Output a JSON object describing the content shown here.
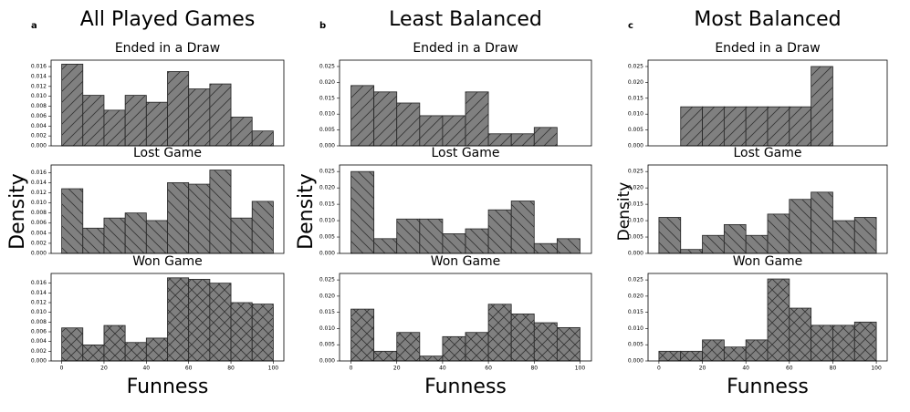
{
  "panels": [
    {
      "label": "a",
      "title": "All Played Games",
      "ylabel": "Density",
      "xlabel": "Funness"
    },
    {
      "label": "b",
      "title": "Least Balanced",
      "ylabel": "Density",
      "xlabel": "Funness"
    },
    {
      "label": "c",
      "title": "Most Balanced",
      "ylabel": "Density",
      "xlabel": "Funness"
    }
  ],
  "chart_data": [
    {
      "type": "histogram",
      "title": "Ended in a Draw",
      "bins": [
        0,
        10,
        20,
        30,
        40,
        50,
        60,
        70,
        80,
        90,
        100
      ],
      "values": [
        0.0165,
        0.0102,
        0.0072,
        0.0102,
        0.0088,
        0.015,
        0.0115,
        0.0125,
        0.0058,
        0.003
      ],
      "color": "#808080",
      "hatch": "/",
      "xlim": [
        -5,
        105
      ],
      "ylim": [
        0,
        0.0173
      ],
      "yticks": [
        {
          "value": 0,
          "label": "0.000"
        },
        0.002,
        0.004,
        0.006,
        0.008,
        {
          "value": 0.01,
          "label": "0.010"
        },
        0.012,
        0.014,
        0.016
      ]
    },
    {
      "type": "histogram",
      "title": "Lost Game",
      "bins": [
        0,
        10,
        20,
        30,
        40,
        50,
        60,
        70,
        80,
        90,
        100
      ],
      "values": [
        0.0128,
        0.005,
        0.007,
        0.008,
        0.0065,
        0.014,
        0.0137,
        0.0165,
        0.007,
        0.0103
      ],
      "color": "#808080",
      "hatch": "\\",
      "xlim": [
        -5,
        105
      ],
      "ylim": [
        0,
        0.0175
      ],
      "yticks": [
        {
          "value": 0,
          "label": "0.000"
        },
        0.002,
        0.004,
        0.006,
        0.008,
        {
          "value": 0.01,
          "label": "0.010"
        },
        0.012,
        0.014,
        0.016
      ]
    },
    {
      "type": "histogram",
      "title": "Won Game",
      "bins": [
        0,
        10,
        20,
        30,
        40,
        50,
        60,
        70,
        80,
        90,
        100
      ],
      "values": [
        0.0068,
        0.0033,
        0.0073,
        0.0038,
        0.0047,
        0.0171,
        0.0168,
        0.016,
        0.012,
        0.0117
      ],
      "color": "#808080",
      "hatch": "x",
      "xlim": [
        -5,
        105
      ],
      "ylim": [
        0,
        0.018
      ],
      "yticks": [
        {
          "value": 0,
          "label": "0.000"
        },
        0.002,
        0.004,
        0.006,
        0.008,
        {
          "value": 0.01,
          "label": "0.010"
        },
        0.012,
        0.014,
        0.016
      ],
      "xticks": [
        0,
        20,
        40,
        60,
        80,
        100
      ]
    },
    {
      "type": "histogram",
      "title": "Ended in a Draw",
      "bins": [
        0,
        10,
        20,
        30,
        40,
        50,
        60,
        70,
        80,
        90,
        100
      ],
      "values": [
        0.019,
        0.017,
        0.0135,
        0.0095,
        0.0095,
        0.017,
        0.0038,
        0.0038,
        0.0058,
        0
      ],
      "color": "#808080",
      "hatch": "/",
      "xlim": [
        -5,
        105
      ],
      "ylim": [
        0,
        0.027
      ],
      "yticks": [
        {
          "value": 0,
          "label": "0.000"
        },
        0.005,
        {
          "value": 0.01,
          "label": "0.010"
        },
        0.015,
        {
          "value": 0.02,
          "label": "0.020"
        },
        0.025
      ]
    },
    {
      "type": "histogram",
      "title": "Lost Game",
      "bins": [
        0,
        10,
        20,
        30,
        40,
        50,
        60,
        70,
        80,
        90,
        100
      ],
      "values": [
        0.025,
        0.0045,
        0.0105,
        0.0105,
        0.006,
        0.0075,
        0.0133,
        0.016,
        0.003,
        0.0045
      ],
      "color": "#808080",
      "hatch": "\\",
      "xlim": [
        -5,
        105
      ],
      "ylim": [
        0,
        0.027
      ],
      "yticks": [
        {
          "value": 0,
          "label": "0.000"
        },
        0.005,
        {
          "value": 0.01,
          "label": "0.010"
        },
        0.015,
        {
          "value": 0.02,
          "label": "0.020"
        },
        0.025
      ]
    },
    {
      "type": "histogram",
      "title": "Won Game",
      "bins": [
        0,
        10,
        20,
        30,
        40,
        50,
        60,
        70,
        80,
        90,
        100
      ],
      "values": [
        0.016,
        0.003,
        0.0088,
        0.0015,
        0.0075,
        0.0088,
        0.0175,
        0.0145,
        0.0118,
        0.0103
      ],
      "color": "#808080",
      "hatch": "x",
      "xlim": [
        -5,
        105
      ],
      "ylim": [
        0,
        0.027
      ],
      "yticks": [
        {
          "value": 0,
          "label": "0.000"
        },
        0.005,
        {
          "value": 0.01,
          "label": "0.010"
        },
        0.015,
        {
          "value": 0.02,
          "label": "0.020"
        },
        0.025
      ],
      "xticks": [
        0,
        20,
        40,
        60,
        80,
        100
      ]
    },
    {
      "type": "histogram",
      "title": "Ended in a Draw",
      "bins": [
        0,
        10,
        20,
        30,
        40,
        50,
        60,
        70,
        80,
        90,
        100
      ],
      "values": [
        0,
        0.0123,
        0.0123,
        0.0123,
        0.0123,
        0.0123,
        0.0123,
        0.025,
        0,
        0
      ],
      "color": "#808080",
      "hatch": "/",
      "xlim": [
        -5,
        105
      ],
      "ylim": [
        0,
        0.027
      ],
      "yticks": [
        {
          "value": 0,
          "label": "0.000"
        },
        0.005,
        {
          "value": 0.01,
          "label": "0.010"
        },
        0.015,
        {
          "value": 0.02,
          "label": "0.020"
        },
        0.025
      ]
    },
    {
      "type": "histogram",
      "title": "Lost Game",
      "bins": [
        0,
        10,
        20,
        30,
        40,
        50,
        60,
        70,
        80,
        90,
        100
      ],
      "values": [
        0.011,
        0.0012,
        0.0055,
        0.0088,
        0.0055,
        0.012,
        0.0165,
        0.0187,
        0.01,
        0.011
      ],
      "color": "#808080",
      "hatch": "\\",
      "xlim": [
        -5,
        105
      ],
      "ylim": [
        0,
        0.027
      ],
      "yticks": [
        {
          "value": 0,
          "label": "0.000"
        },
        0.005,
        {
          "value": 0.01,
          "label": "0.010"
        },
        0.015,
        {
          "value": 0.02,
          "label": "0.020"
        },
        0.025
      ]
    },
    {
      "type": "histogram",
      "title": "Won Game",
      "bins": [
        0,
        10,
        20,
        30,
        40,
        50,
        60,
        70,
        80,
        90,
        100
      ],
      "values": [
        0.003,
        0.003,
        0.0065,
        0.0043,
        0.0065,
        0.0253,
        0.0163,
        0.011,
        0.011,
        0.012
      ],
      "color": "#808080",
      "hatch": "x",
      "xlim": [
        -5,
        105
      ],
      "ylim": [
        0,
        0.027
      ],
      "yticks": [
        {
          "value": 0,
          "label": "0.000"
        },
        0.005,
        {
          "value": 0.01,
          "label": "0.010"
        },
        0.015,
        {
          "value": 0.02,
          "label": "0.020"
        },
        0.025
      ],
      "xticks": [
        0,
        20,
        40,
        60,
        80,
        100
      ]
    }
  ]
}
